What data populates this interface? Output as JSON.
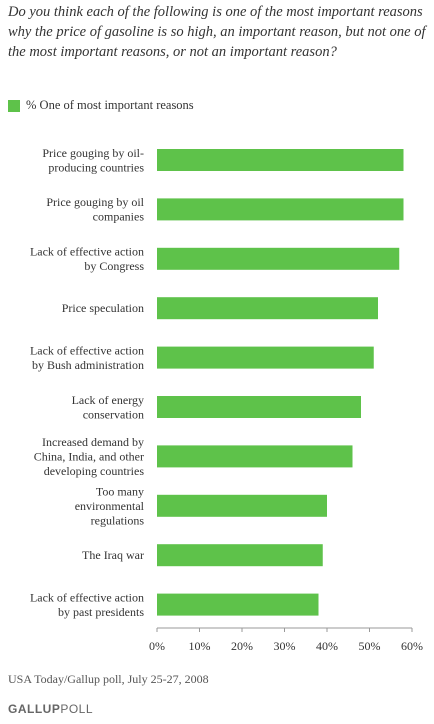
{
  "question": "Do you think each of the following is one of the most important reasons why the price of gasoline is so high, an important reason, but not one of the most important reasons, or not an important reason?",
  "source": "USA Today/Gallup poll, July 25-27, 2008",
  "logo": {
    "brand": "GALLUP",
    "suffix": "POLL"
  },
  "colors": {
    "bar": "#5ec24a"
  },
  "chart_data": {
    "type": "bar",
    "orientation": "horizontal",
    "legend": {
      "label": "% One of most important reasons",
      "position": "top-left"
    },
    "categories": [
      [
        "Price gouging by oil-",
        "producing countries"
      ],
      [
        "Price gouging by oil",
        "companies"
      ],
      [
        "Lack of effective action",
        "by Congress"
      ],
      [
        "Price speculation"
      ],
      [
        "Lack of effective action",
        "by Bush administration"
      ],
      [
        "Lack of energy",
        "conservation"
      ],
      [
        "Increased demand by",
        "China, India, and other",
        "developing countries"
      ],
      [
        "Too many",
        "environmental",
        "regulations"
      ],
      [
        "The Iraq war"
      ],
      [
        "Lack of effective action",
        "by past presidents"
      ]
    ],
    "series": [
      {
        "name": "% One of most important reasons",
        "values": [
          58,
          58,
          57,
          52,
          51,
          48,
          46,
          40,
          39,
          38
        ]
      }
    ],
    "xlim": [
      0,
      60
    ],
    "ticks": [
      "0%",
      "10%",
      "20%",
      "30%",
      "40%",
      "50%",
      "60%"
    ],
    "grid": false
  }
}
